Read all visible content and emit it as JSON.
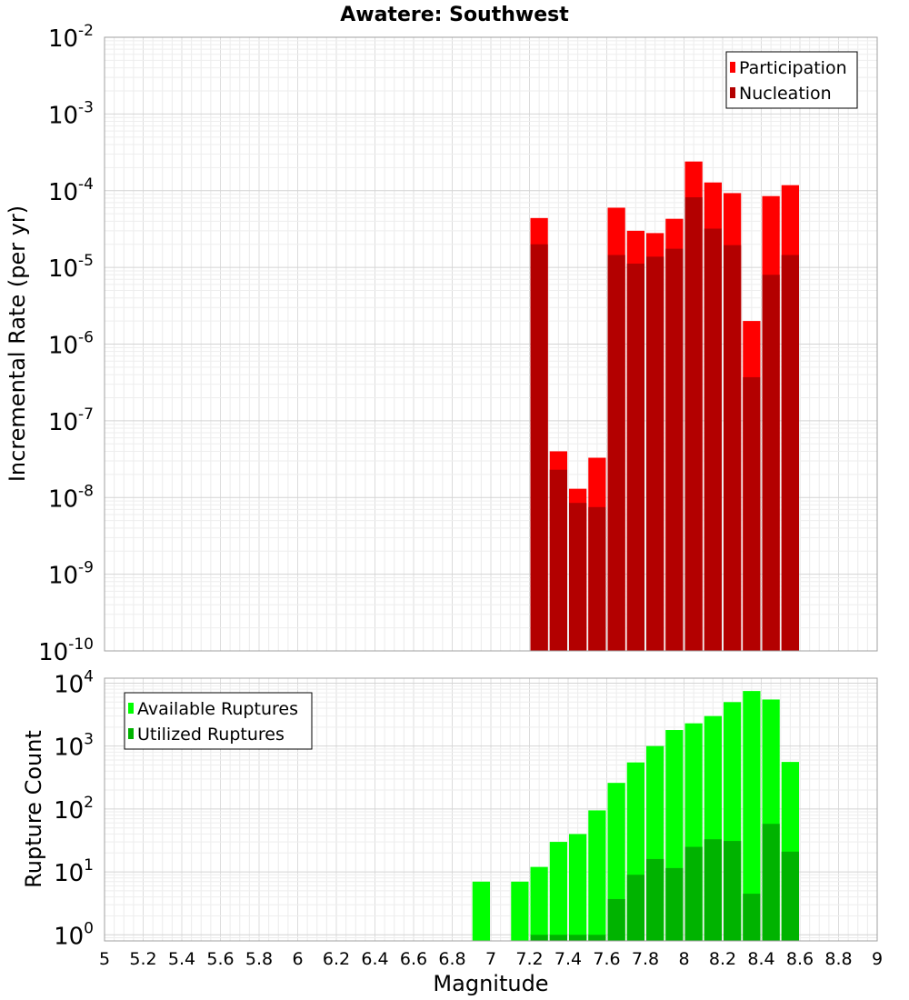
{
  "chart_data": [
    {
      "type": "bar",
      "title": "Awatere: Southwest",
      "xlabel": "",
      "ylabel": "Incremental Rate (per yr)",
      "yscale": "log",
      "ylim": [
        1e-10,
        0.01
      ],
      "xlim": [
        5,
        9
      ],
      "bin_width": 0.1,
      "grid": true,
      "legend_position": "top-right",
      "y_ticks": [
        {
          "base": "10",
          "exp": "-10"
        },
        {
          "base": "10",
          "exp": "-9"
        },
        {
          "base": "10",
          "exp": "-8"
        },
        {
          "base": "10",
          "exp": "-7"
        },
        {
          "base": "10",
          "exp": "-6"
        },
        {
          "base": "10",
          "exp": "-5"
        },
        {
          "base": "10",
          "exp": "-4"
        },
        {
          "base": "10",
          "exp": "-3"
        },
        {
          "base": "10",
          "exp": "-2"
        }
      ],
      "x": [
        7.25,
        7.35,
        7.45,
        7.55,
        7.65,
        7.75,
        7.85,
        7.95,
        8.05,
        8.15,
        8.25,
        8.35,
        8.45,
        8.55
      ],
      "series": [
        {
          "name": "Participation",
          "color": "#ff0000",
          "values": [
            4.4e-05,
            4e-08,
            1.3e-08,
            3.3e-08,
            6e-05,
            3e-05,
            2.8e-05,
            4.3e-05,
            0.00024,
            0.000128,
            9.3e-05,
            2e-06,
            8.5e-05,
            0.000118
          ]
        },
        {
          "name": "Nucleation",
          "color": "#b30000",
          "values": [
            2e-05,
            2.3e-08,
            8.5e-09,
            7.5e-09,
            1.45e-05,
            1.12e-05,
            1.38e-05,
            1.75e-05,
            8.2e-05,
            3.2e-05,
            1.95e-05,
            3.7e-07,
            8e-06,
            1.45e-05
          ]
        }
      ]
    },
    {
      "type": "bar",
      "title": "",
      "xlabel": "Magnitude",
      "ylabel": "Rupture Count",
      "yscale": "log",
      "ylim": [
        0.8,
        12000
      ],
      "xlim": [
        5,
        9
      ],
      "bin_width": 0.1,
      "grid": true,
      "legend_position": "top-left",
      "y_ticks": [
        {
          "base": "10",
          "exp": "0"
        },
        {
          "base": "10",
          "exp": "1"
        },
        {
          "base": "10",
          "exp": "2"
        },
        {
          "base": "10",
          "exp": "3"
        },
        {
          "base": "10",
          "exp": "4"
        }
      ],
      "x_ticks": [
        "5",
        "5.2",
        "5.4",
        "5.6",
        "5.8",
        "6",
        "6.2",
        "6.4",
        "6.6",
        "6.8",
        "7",
        "7.2",
        "7.4",
        "7.6",
        "7.8",
        "8",
        "8.2",
        "8.4",
        "8.6",
        "8.8",
        "9"
      ],
      "x": [
        6.95,
        7.15,
        7.25,
        7.35,
        7.45,
        7.55,
        7.65,
        7.75,
        7.85,
        7.95,
        8.05,
        8.15,
        8.25,
        8.35,
        8.45,
        8.55
      ],
      "series": [
        {
          "name": "Available Ruptures",
          "color": "#00ff00",
          "values": [
            7,
            7,
            12,
            30,
            40,
            95,
            260,
            550,
            1000,
            1800,
            2300,
            3000,
            5000,
            7500,
            5500,
            560
          ]
        },
        {
          "name": "Utilized Ruptures",
          "color": "#00b300",
          "values": [
            0,
            0,
            1,
            1,
            1,
            1,
            3.7,
            9,
            16,
            11.5,
            25,
            33,
            31,
            4.5,
            58,
            21
          ]
        }
      ]
    }
  ]
}
